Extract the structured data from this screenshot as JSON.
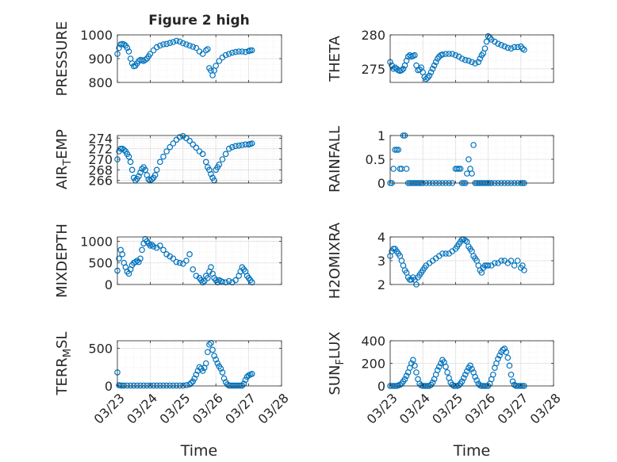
{
  "figure": {
    "title": "Figure 2 high",
    "xlabel": "Time",
    "xtick_labels": [
      "03/23",
      "03/24",
      "03/25",
      "03/26",
      "03/27",
      "03/28"
    ],
    "marker_color": "#0072BD"
  },
  "chart_data": [
    {
      "type": "scatter",
      "ylabel": "PRESSURE",
      "ylim": [
        800,
        1000
      ],
      "yticks": [
        800,
        900,
        1000
      ],
      "xlim": [
        0,
        5
      ],
      "x": [
        0.0,
        0.05,
        0.1,
        0.15,
        0.2,
        0.25,
        0.3,
        0.35,
        0.4,
        0.45,
        0.5,
        0.55,
        0.6,
        0.65,
        0.7,
        0.75,
        0.8,
        0.85,
        0.9,
        0.95,
        1.0,
        1.1,
        1.2,
        1.3,
        1.4,
        1.5,
        1.6,
        1.7,
        1.8,
        1.9,
        2.0,
        2.1,
        2.2,
        2.3,
        2.4,
        2.5,
        2.6,
        2.7,
        2.75,
        2.8,
        2.85,
        2.9,
        2.95,
        3.0,
        3.1,
        3.2,
        3.3,
        3.4,
        3.5,
        3.6,
        3.7,
        3.8,
        3.9,
        4.0,
        4.05,
        4.1
      ],
      "y": [
        920,
        945,
        960,
        962,
        960,
        955,
        945,
        930,
        900,
        880,
        868,
        870,
        880,
        890,
        895,
        893,
        890,
        895,
        900,
        910,
        920,
        935,
        948,
        955,
        960,
        962,
        966,
        970,
        975,
        972,
        965,
        960,
        955,
        950,
        945,
        930,
        920,
        935,
        940,
        860,
        850,
        830,
        850,
        870,
        890,
        905,
        915,
        920,
        925,
        928,
        930,
        930,
        928,
        932,
        935,
        935
      ]
    },
    {
      "type": "scatter",
      "ylabel": "THETA",
      "ylim": [
        273,
        280
      ],
      "yticks": [
        275,
        280
      ],
      "xlim": [
        0,
        5
      ],
      "x": [
        0.0,
        0.05,
        0.1,
        0.15,
        0.2,
        0.25,
        0.3,
        0.35,
        0.4,
        0.45,
        0.5,
        0.55,
        0.6,
        0.65,
        0.7,
        0.75,
        0.8,
        0.85,
        0.9,
        0.95,
        1.0,
        1.05,
        1.1,
        1.15,
        1.2,
        1.25,
        1.3,
        1.35,
        1.4,
        1.45,
        1.5,
        1.55,
        1.6,
        1.7,
        1.8,
        1.9,
        2.0,
        2.1,
        2.2,
        2.3,
        2.4,
        2.5,
        2.6,
        2.7,
        2.75,
        2.8,
        2.85,
        2.9,
        2.95,
        3.0,
        3.05,
        3.1,
        3.2,
        3.3,
        3.4,
        3.5,
        3.6,
        3.7,
        3.8,
        3.9,
        4.0,
        4.05,
        4.1
      ],
      "y": [
        276,
        275.5,
        275,
        275.2,
        275.0,
        274.8,
        274.7,
        274.8,
        275.0,
        275.5,
        276.2,
        276.8,
        277.0,
        276.8,
        276.9,
        277.0,
        275.5,
        274.8,
        274.9,
        275.2,
        274.5,
        273.8,
        273.5,
        273.7,
        274.0,
        274.5,
        275.0,
        275.5,
        276.0,
        276.5,
        276.8,
        277.0,
        277.1,
        277.2,
        277.2,
        277.2,
        277.0,
        276.8,
        276.5,
        276.3,
        276.2,
        276.0,
        275.8,
        276.0,
        276.5,
        277.0,
        277.3,
        278.0,
        279.0,
        279.8,
        279.6,
        279.3,
        279.0,
        278.7,
        278.5,
        278.3,
        278.1,
        278.0,
        278.2,
        278.2,
        278.3,
        278.0,
        277.8
      ]
    },
    {
      "type": "scatter",
      "ylabel": "AIR_TEMP",
      "ylim": [
        265.5,
        274.5
      ],
      "yticks": [
        266,
        268,
        270,
        272,
        274
      ],
      "xlim": [
        0,
        5
      ],
      "x": [
        0.0,
        0.05,
        0.1,
        0.15,
        0.2,
        0.25,
        0.3,
        0.35,
        0.4,
        0.45,
        0.5,
        0.55,
        0.6,
        0.65,
        0.7,
        0.75,
        0.8,
        0.85,
        0.9,
        0.95,
        1.0,
        1.05,
        1.1,
        1.15,
        1.2,
        1.3,
        1.4,
        1.5,
        1.6,
        1.7,
        1.8,
        1.9,
        2.0,
        2.1,
        2.2,
        2.3,
        2.4,
        2.5,
        2.6,
        2.7,
        2.75,
        2.8,
        2.85,
        2.9,
        2.95,
        3.0,
        3.05,
        3.1,
        3.2,
        3.3,
        3.4,
        3.5,
        3.6,
        3.7,
        3.8,
        3.9,
        4.0,
        4.05,
        4.1
      ],
      "y": [
        270,
        271.5,
        272,
        272,
        271.8,
        271.5,
        271,
        270.5,
        269.5,
        268,
        266.5,
        266,
        266.3,
        266.8,
        267.5,
        268.2,
        268.5,
        268,
        267,
        266.2,
        266,
        266.2,
        266.5,
        267,
        268,
        269.5,
        270.5,
        271.5,
        272.3,
        273,
        273.7,
        274.2,
        274.4,
        274,
        273.5,
        272.8,
        272.2,
        271.5,
        271,
        269.5,
        268.5,
        268,
        267.2,
        266.5,
        266,
        268,
        268.5,
        269,
        270,
        271,
        272,
        272.3,
        272.5,
        272.6,
        272.7,
        272.8,
        272.8,
        272.9,
        273
      ]
    },
    {
      "type": "scatter",
      "ylabel": "RAINFALL",
      "ylim": [
        0,
        1
      ],
      "yticks": [
        0,
        0.5,
        1
      ],
      "xlim": [
        0,
        5
      ],
      "x": [
        0.0,
        0.05,
        0.1,
        0.15,
        0.2,
        0.25,
        0.3,
        0.35,
        0.4,
        0.45,
        0.5,
        0.55,
        0.6,
        0.65,
        0.7,
        0.75,
        0.8,
        0.85,
        0.9,
        0.95,
        1.0,
        1.1,
        1.2,
        1.3,
        1.4,
        1.5,
        1.6,
        1.7,
        1.8,
        1.9,
        2.0,
        2.05,
        2.1,
        2.15,
        2.2,
        2.25,
        2.3,
        2.35,
        2.4,
        2.45,
        2.5,
        2.55,
        2.6,
        2.65,
        2.7,
        2.75,
        2.8,
        2.85,
        2.9,
        2.95,
        3.0,
        3.05,
        3.1,
        3.2,
        3.3,
        3.4,
        3.5,
        3.6,
        3.7,
        3.8,
        3.9,
        4.0,
        4.05,
        4.1
      ],
      "y": [
        0,
        0,
        0.3,
        0.7,
        0.7,
        0.7,
        0.3,
        0.3,
        1,
        1,
        0.3,
        0,
        0,
        0,
        0,
        0,
        0,
        0,
        0,
        0,
        0,
        0,
        0,
        0,
        0,
        0,
        0,
        0,
        0,
        0,
        0.3,
        0.3,
        0.3,
        0.3,
        0,
        0,
        0,
        0.2,
        0.5,
        0.3,
        0.2,
        0.8,
        0,
        0,
        0,
        0,
        0,
        0,
        0,
        0,
        0,
        0,
        0,
        0,
        0,
        0,
        0,
        0,
        0,
        0,
        0,
        0,
        0,
        0
      ]
    },
    {
      "type": "scatter",
      "ylabel": "MIXDEPTH",
      "ylim": [
        0,
        1100
      ],
      "yticks": [
        0,
        500,
        1000
      ],
      "xlim": [
        0,
        5
      ],
      "x": [
        0.0,
        0.05,
        0.1,
        0.15,
        0.2,
        0.25,
        0.3,
        0.35,
        0.4,
        0.45,
        0.5,
        0.55,
        0.6,
        0.65,
        0.7,
        0.75,
        0.8,
        0.85,
        0.9,
        0.95,
        1.0,
        1.05,
        1.1,
        1.2,
        1.3,
        1.4,
        1.5,
        1.6,
        1.7,
        1.8,
        1.9,
        2.0,
        2.1,
        2.2,
        2.3,
        2.4,
        2.5,
        2.55,
        2.6,
        2.65,
        2.7,
        2.75,
        2.8,
        2.85,
        2.9,
        2.95,
        3.0,
        3.05,
        3.1,
        3.15,
        3.2,
        3.3,
        3.4,
        3.5,
        3.6,
        3.7,
        3.75,
        3.8,
        3.85,
        3.9,
        3.95,
        4.0,
        4.05,
        4.1
      ],
      "y": [
        320,
        600,
        800,
        700,
        500,
        400,
        300,
        250,
        350,
        450,
        500,
        520,
        550,
        520,
        600,
        800,
        950,
        1050,
        1000,
        950,
        900,
        920,
        880,
        850,
        900,
        800,
        700,
        650,
        600,
        520,
        500,
        480,
        550,
        700,
        350,
        200,
        150,
        100,
        50,
        80,
        200,
        150,
        300,
        400,
        250,
        150,
        100,
        50,
        100,
        80,
        60,
        50,
        80,
        50,
        100,
        200,
        300,
        400,
        350,
        300,
        200,
        150,
        100,
        50
      ]
    },
    {
      "type": "scatter",
      "ylabel": "H2OMIXRA",
      "ylim": [
        2,
        4
      ],
      "yticks": [
        2,
        3,
        4
      ],
      "xlim": [
        0,
        5
      ],
      "x": [
        0.0,
        0.05,
        0.1,
        0.15,
        0.2,
        0.25,
        0.3,
        0.35,
        0.4,
        0.45,
        0.5,
        0.55,
        0.6,
        0.65,
        0.7,
        0.75,
        0.8,
        0.85,
        0.9,
        0.95,
        1.0,
        1.05,
        1.1,
        1.2,
        1.3,
        1.4,
        1.5,
        1.6,
        1.7,
        1.8,
        1.9,
        2.0,
        2.05,
        2.1,
        2.15,
        2.2,
        2.25,
        2.3,
        2.35,
        2.4,
        2.45,
        2.5,
        2.55,
        2.6,
        2.65,
        2.7,
        2.75,
        2.8,
        2.85,
        2.9,
        2.95,
        3.0,
        3.1,
        3.2,
        3.3,
        3.4,
        3.5,
        3.6,
        3.7,
        3.8,
        3.9,
        4.0,
        4.05,
        4.1
      ],
      "y": [
        3.2,
        3.4,
        3.5,
        3.5,
        3.4,
        3.3,
        3.2,
        3.0,
        2.8,
        2.6,
        2.5,
        2.3,
        2.2,
        2.2,
        2.3,
        2.2,
        2.0,
        2.3,
        2.4,
        2.5,
        2.6,
        2.7,
        2.8,
        2.9,
        3.0,
        3.1,
        3.2,
        3.3,
        3.3,
        3.3,
        3.4,
        3.5,
        3.6,
        3.7,
        3.8,
        3.9,
        3.9,
        3.85,
        3.8,
        3.6,
        3.5,
        3.4,
        3.2,
        3.1,
        3.0,
        2.8,
        2.6,
        2.5,
        2.7,
        2.8,
        2.8,
        2.8,
        2.8,
        2.9,
        2.9,
        3.0,
        3.0,
        2.9,
        3.0,
        2.8,
        3.0,
        2.7,
        2.8,
        2.6
      ]
    },
    {
      "type": "scatter",
      "ylabel": "TERR_MSL",
      "ylim": [
        0,
        600
      ],
      "yticks": [
        0,
        500
      ],
      "xlim": [
        0,
        5
      ],
      "x": [
        0.0,
        0.05,
        0.1,
        0.15,
        0.2,
        0.3,
        0.4,
        0.5,
        0.6,
        0.7,
        0.8,
        0.9,
        1.0,
        1.1,
        1.2,
        1.3,
        1.4,
        1.5,
        1.6,
        1.7,
        1.8,
        1.9,
        2.0,
        2.1,
        2.2,
        2.25,
        2.3,
        2.35,
        2.4,
        2.45,
        2.5,
        2.55,
        2.6,
        2.65,
        2.7,
        2.75,
        2.8,
        2.85,
        2.9,
        2.95,
        3.0,
        3.05,
        3.1,
        3.15,
        3.2,
        3.25,
        3.3,
        3.35,
        3.4,
        3.45,
        3.5,
        3.55,
        3.6,
        3.65,
        3.7,
        3.75,
        3.8,
        3.85,
        3.9,
        3.95,
        4.0,
        4.05,
        4.1
      ],
      "y": [
        180,
        10,
        5,
        5,
        5,
        5,
        5,
        5,
        5,
        5,
        5,
        5,
        5,
        5,
        5,
        5,
        5,
        5,
        5,
        5,
        5,
        5,
        5,
        10,
        20,
        40,
        60,
        100,
        150,
        200,
        250,
        230,
        200,
        240,
        300,
        450,
        550,
        570,
        480,
        400,
        350,
        300,
        260,
        230,
        180,
        100,
        50,
        20,
        5,
        5,
        5,
        5,
        5,
        5,
        5,
        5,
        5,
        30,
        80,
        120,
        140,
        150,
        160
      ]
    },
    {
      "type": "scatter",
      "ylabel": "SUN_FLUX",
      "ylim": [
        0,
        400
      ],
      "yticks": [
        0,
        200,
        400
      ],
      "xlim": [
        0,
        5
      ],
      "x": [
        0.0,
        0.05,
        0.1,
        0.15,
        0.2,
        0.25,
        0.3,
        0.35,
        0.4,
        0.45,
        0.5,
        0.55,
        0.6,
        0.65,
        0.7,
        0.75,
        0.8,
        0.85,
        0.9,
        0.95,
        1.0,
        1.05,
        1.1,
        1.15,
        1.2,
        1.25,
        1.3,
        1.35,
        1.4,
        1.45,
        1.5,
        1.55,
        1.6,
        1.65,
        1.7,
        1.75,
        1.8,
        1.85,
        1.9,
        1.95,
        2.0,
        2.05,
        2.1,
        2.15,
        2.2,
        2.25,
        2.3,
        2.35,
        2.4,
        2.45,
        2.5,
        2.55,
        2.6,
        2.65,
        2.7,
        2.75,
        2.8,
        2.85,
        2.9,
        2.95,
        3.0,
        3.05,
        3.1,
        3.15,
        3.2,
        3.25,
        3.3,
        3.35,
        3.4,
        3.45,
        3.5,
        3.55,
        3.6,
        3.65,
        3.7,
        3.75,
        3.8,
        3.85,
        3.9,
        3.95,
        4.0,
        4.05,
        4.1
      ],
      "y": [
        0,
        0,
        0,
        0,
        0,
        5,
        10,
        20,
        40,
        60,
        90,
        120,
        160,
        200,
        230,
        180,
        120,
        60,
        20,
        5,
        0,
        0,
        0,
        0,
        0,
        10,
        30,
        60,
        100,
        140,
        170,
        200,
        230,
        210,
        170,
        120,
        70,
        30,
        10,
        0,
        0,
        0,
        5,
        20,
        40,
        70,
        100,
        130,
        160,
        180,
        150,
        120,
        80,
        50,
        20,
        5,
        0,
        0,
        0,
        0,
        0,
        20,
        60,
        100,
        160,
        200,
        240,
        270,
        300,
        320,
        330,
        300,
        250,
        180,
        100,
        40,
        10,
        0,
        0,
        0,
        0,
        0,
        0
      ]
    }
  ]
}
